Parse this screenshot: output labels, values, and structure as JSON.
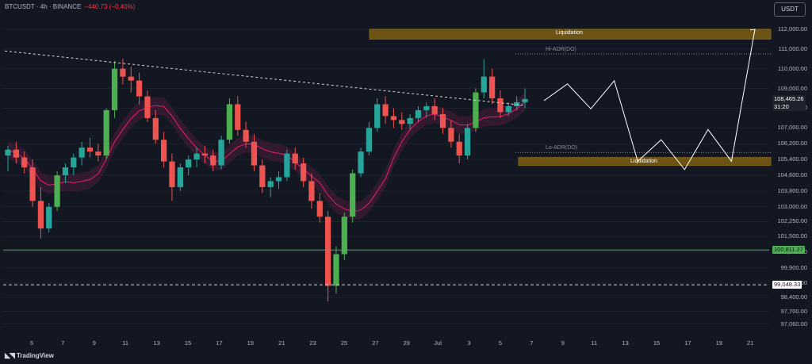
{
  "header": {
    "symbol_info": "BTCUSDT · 4h · BINANCE",
    "change": "−440.73 (−0.40%)"
  },
  "currency_button": "USDT",
  "branding": "TradingView",
  "colors": {
    "background": "#131722",
    "bull_candle": "#26a69a",
    "bear_candle": "#ef5350",
    "bull_highlight": "#2962ff",
    "bear_highlight": "#e040fb",
    "bull_bright": "#4caf50",
    "moving_average": "#e91e63",
    "band_fill": "#4a1c3c",
    "liquidation_zone": "#b8860b",
    "support_line": "#4caf50",
    "projection": "#ffffff"
  },
  "chart_data": {
    "type": "candlestick",
    "symbol": "BTCUSDT",
    "timeframe": "4h",
    "exchange": "BINANCE",
    "ylim": [
      96600,
      112600
    ],
    "price_scale": [
      "112,000.00",
      "111,000.00",
      "110,000.00",
      "109,000.00",
      "108,000.00",
      "107,000.00",
      "106,200.00",
      "105,400.00",
      "104,600.00",
      "103,800.00",
      "103,000.00",
      "102,250.00",
      "101,500.00",
      "100,700.00",
      "99,900.00",
      "99,150.00",
      "98,400.00",
      "97,700.00",
      "97,060.00"
    ],
    "date_labels": [
      "5",
      "7",
      "9",
      "11",
      "13",
      "15",
      "17",
      "19",
      "21",
      "23",
      "25",
      "27",
      "29",
      "Jul",
      "3",
      "5",
      "7",
      "9",
      "11",
      "13",
      "15",
      "17",
      "19",
      "21"
    ],
    "current_price": "108,465.26",
    "countdown": "31:20",
    "levels": [
      {
        "label": "100,811.27",
        "value": 100811.27,
        "style": "solid",
        "color": "#4caf50"
      },
      {
        "label": "99,048.33",
        "value": 99048.33,
        "style": "dashed",
        "color": "#d1d4dc"
      }
    ],
    "zones": [
      {
        "label": "Liquidation",
        "from": 111500,
        "to": 112000
      },
      {
        "label": "Liquidation",
        "from": 105100,
        "to": 105500
      }
    ],
    "adr": [
      {
        "label": "Hi-ADR(DO)",
        "value": 110750
      },
      {
        "label": "Lo-ADR(DO)",
        "value": 105750
      }
    ],
    "trendline": {
      "from": [
        0,
        110900
      ],
      "to": 108150
    },
    "projection": [
      108380,
      109230,
      107970,
      109390,
      105310,
      106400,
      104890,
      106920,
      105310,
      112000
    ],
    "ohlc_approx": [
      [
        105600,
        106100,
        104800,
        105900
      ],
      [
        105900,
        106300,
        105200,
        105500
      ],
      [
        105500,
        105800,
        104700,
        105000
      ],
      [
        105000,
        105400,
        103000,
        103300
      ],
      [
        103300,
        104000,
        101400,
        101900
      ],
      [
        101900,
        103200,
        101700,
        103000
      ],
      [
        103000,
        104800,
        102800,
        104600
      ],
      [
        104600,
        105200,
        104200,
        105000
      ],
      [
        105000,
        105700,
        104600,
        105500
      ],
      [
        105500,
        106300,
        105100,
        106000
      ],
      [
        106000,
        106500,
        105500,
        105800
      ],
      [
        105800,
        106200,
        105300,
        105600
      ],
      [
        105600,
        108000,
        105400,
        107900
      ],
      [
        107900,
        110400,
        107500,
        110000
      ],
      [
        110000,
        110500,
        109200,
        109600
      ],
      [
        109600,
        110100,
        108800,
        109400
      ],
      [
        109400,
        109800,
        108200,
        108600
      ],
      [
        108600,
        108900,
        107300,
        107500
      ],
      [
        107500,
        107900,
        106200,
        106400
      ],
      [
        106400,
        106800,
        105000,
        105300
      ],
      [
        105300,
        105700,
        103300,
        104000
      ],
      [
        104000,
        105200,
        103800,
        105000
      ],
      [
        105000,
        105600,
        104600,
        105400
      ],
      [
        105400,
        106000,
        105000,
        105700
      ],
      [
        105700,
        106100,
        105200,
        105600
      ],
      [
        105600,
        105900,
        104800,
        105100
      ],
      [
        105100,
        106600,
        104900,
        106400
      ],
      [
        106400,
        108500,
        106200,
        108200
      ],
      [
        108200,
        108600,
        106600,
        106900
      ],
      [
        106900,
        107300,
        106000,
        106300
      ],
      [
        106300,
        106700,
        104800,
        105100
      ],
      [
        105100,
        105400,
        103700,
        104000
      ],
      [
        104000,
        104500,
        103500,
        104300
      ],
      [
        104300,
        104800,
        103900,
        104500
      ],
      [
        104500,
        105900,
        104300,
        105700
      ],
      [
        105700,
        106000,
        104900,
        105200
      ],
      [
        105200,
        105500,
        104000,
        104300
      ],
      [
        104300,
        104700,
        102900,
        103300
      ],
      [
        103300,
        103700,
        102200,
        102500
      ],
      [
        102500,
        102800,
        98200,
        99000
      ],
      [
        99000,
        101000,
        98600,
        100600
      ],
      [
        100600,
        102700,
        100300,
        102500
      ],
      [
        102500,
        104900,
        102200,
        104700
      ],
      [
        104700,
        106000,
        104500,
        105800
      ],
      [
        105800,
        107300,
        105600,
        107000
      ],
      [
        107000,
        108500,
        106800,
        108200
      ],
      [
        108200,
        108600,
        107200,
        107600
      ],
      [
        107600,
        108000,
        107000,
        107400
      ],
      [
        107400,
        107800,
        106900,
        107200
      ],
      [
        107200,
        107700,
        106900,
        107500
      ],
      [
        107500,
        108100,
        107300,
        107900
      ],
      [
        107900,
        108300,
        107500,
        108100
      ],
      [
        108100,
        108500,
        107400,
        107700
      ],
      [
        107700,
        108000,
        106700,
        107000
      ],
      [
        107000,
        107400,
        106000,
        106300
      ],
      [
        106300,
        106700,
        105200,
        105600
      ],
      [
        105600,
        107200,
        105400,
        107000
      ],
      [
        107000,
        109000,
        106800,
        108800
      ],
      [
        108800,
        110500,
        108500,
        109600
      ],
      [
        109600,
        110000,
        108200,
        108500
      ],
      [
        108500,
        108900,
        107500,
        107800
      ],
      [
        107800,
        108300,
        107600,
        108100
      ],
      [
        108100,
        108600,
        107900,
        108300
      ],
      [
        108300,
        109000,
        108000,
        108465
      ]
    ]
  }
}
